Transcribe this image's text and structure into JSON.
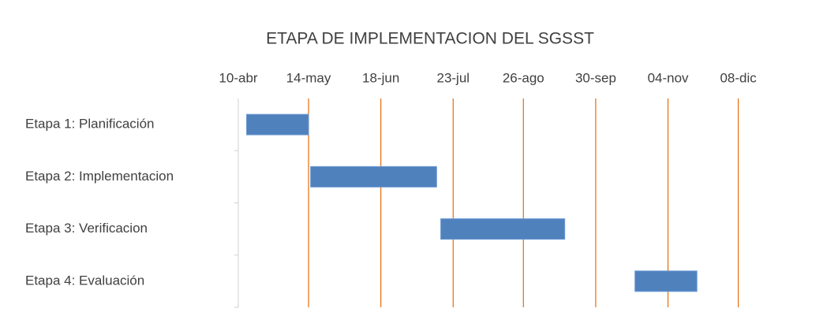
{
  "chart_data": {
    "type": "gantt",
    "title": "ETAPA DE IMPLEMENTACION DEL SGSST",
    "categories": [
      "Etapa 1: Planificación",
      "Etapa 2: Implementacion",
      "Etapa 3: Verificacion",
      "Etapa 4: Evaluación"
    ],
    "start": [
      104,
      135,
      198,
      292
    ],
    "end": [
      134,
      196,
      258,
      322
    ],
    "color": "#4f81bd",
    "grid_color": "#e46c0a",
    "xlim": [
      100,
      375
    ],
    "xticks": [
      {
        "value": 100,
        "label": "10-abr"
      },
      {
        "value": 134,
        "label": "14-may"
      },
      {
        "value": 169,
        "label": "18-jun"
      },
      {
        "value": 204,
        "label": "23-jul"
      },
      {
        "value": 238,
        "label": "26-ago"
      },
      {
        "value": 273,
        "label": "30-sep"
      },
      {
        "value": 308,
        "label": "04-nov"
      },
      {
        "value": 342,
        "label": "08-dic"
      }
    ],
    "grid": true
  }
}
